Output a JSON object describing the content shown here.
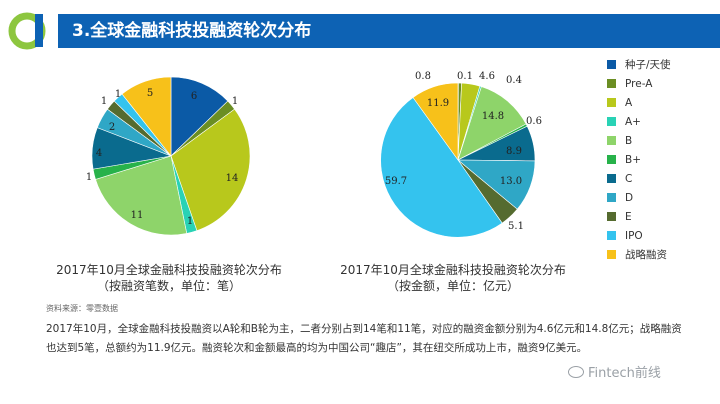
{
  "page": {
    "title": "3.全球金融科技投融资轮次分布",
    "source": "资料来源：零壹数据",
    "summary": "2017年10月，全球金融科技投融资以A轮和B轮为主，二者分别占到14笔和11笔，对应的融资金额分别为4.6亿元和14.8亿元；战略融资也达到5笔，总额约为11.9亿元。融资轮次和金额最高的均为中国公司“趣店”，其在纽交所成功上市，融资9亿美元。",
    "watermark": "Fintech前线"
  },
  "legend": [
    {
      "label": "种子/天使",
      "color": "#0b5aa6"
    },
    {
      "label": "Pre-A",
      "color": "#6b8e23"
    },
    {
      "label": "A",
      "color": "#b8c81c"
    },
    {
      "label": "A+",
      "color": "#29d2b5"
    },
    {
      "label": "B",
      "color": "#8ed46a"
    },
    {
      "label": "B+",
      "color": "#27b24a"
    },
    {
      "label": "C",
      "color": "#0a6b8e"
    },
    {
      "label": "D",
      "color": "#2fa7c6"
    },
    {
      "label": "E",
      "color": "#556b2f"
    },
    {
      "label": "IPO",
      "color": "#34c3ee"
    },
    {
      "label": "战略融资",
      "color": "#f7c11a"
    }
  ],
  "chart_data": [
    {
      "type": "pie",
      "title": "2017年10月全球金融科技投融资轮次分布",
      "subtitle": "（按融资笔数，单位：笔）",
      "categories": [
        "种子/天使",
        "Pre-A",
        "A",
        "A+",
        "B",
        "B+",
        "C",
        "D",
        "E",
        "IPO",
        "战略融资"
      ],
      "values": [
        6,
        1,
        14,
        1,
        11,
        1,
        4,
        2,
        1,
        1,
        5
      ],
      "labels": [
        "6",
        "1",
        "14",
        "1",
        "11",
        "1",
        "4",
        "2",
        "1",
        "1",
        "5"
      ]
    },
    {
      "type": "pie",
      "title": "2017年10月全球金融科技投融资轮次分布",
      "subtitle": "（按金额，单位：亿元）",
      "categories": [
        "种子/天使",
        "Pre-A",
        "A",
        "A+",
        "B",
        "B+",
        "C",
        "D",
        "E",
        "IPO",
        "战略融资"
      ],
      "values": [
        0.1,
        0.8,
        4.6,
        0.4,
        14.8,
        0.6,
        8.9,
        13.0,
        5.1,
        59.7,
        11.9
      ],
      "labels": [
        "0.1",
        "0.8",
        "4.6",
        "0.4",
        "14.8",
        "0.6",
        "8.9",
        "13.0",
        "5.1",
        "59.7",
        "11.9"
      ]
    }
  ]
}
